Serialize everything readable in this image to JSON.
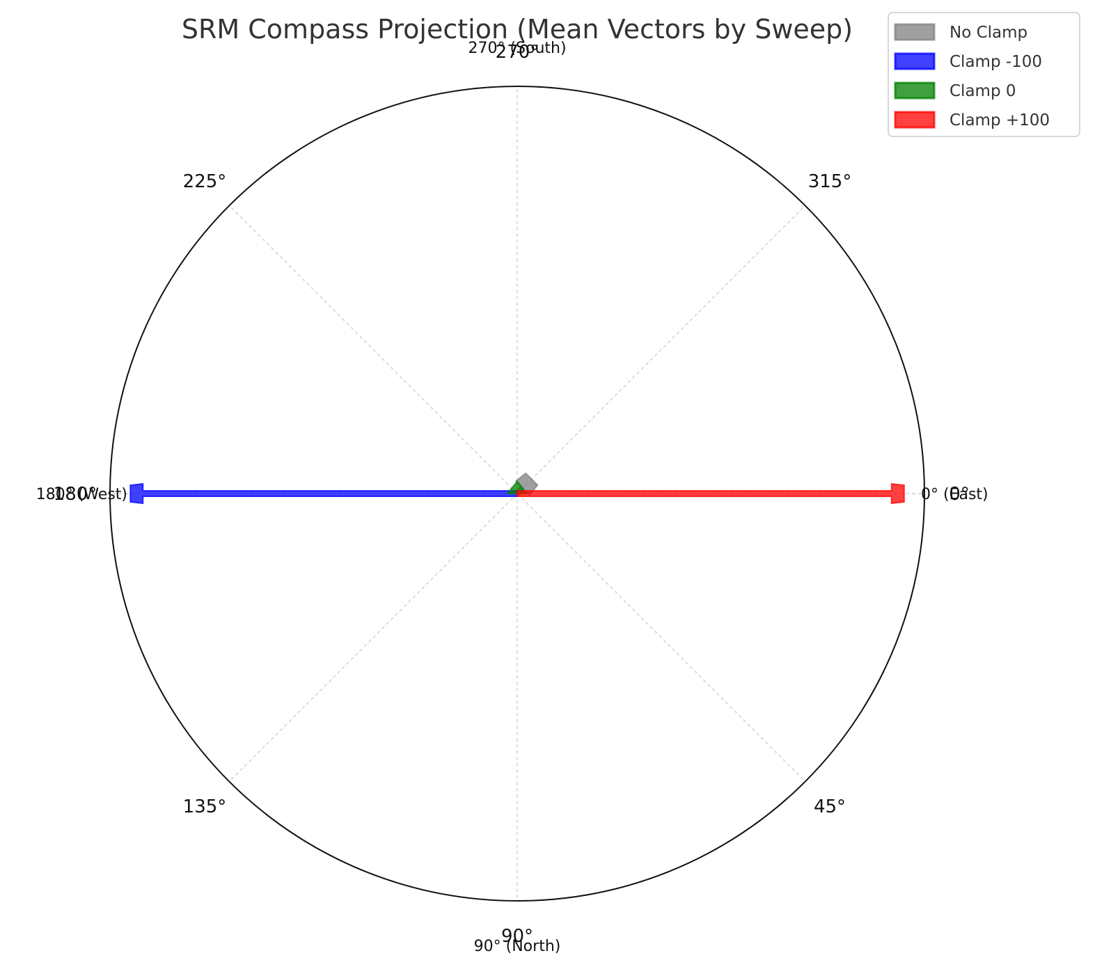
{
  "chart_data": {
    "type": "polar-arrow",
    "title": "SRM Compass Projection (Mean Vectors by Sweep)",
    "angle_direction": "clockwise",
    "zero_location": "E",
    "angle_ticks": [
      {
        "angle": 0,
        "label": "0°"
      },
      {
        "angle": 45,
        "label": "45°"
      },
      {
        "angle": 90,
        "label": "90°"
      },
      {
        "angle": 135,
        "label": "135°"
      },
      {
        "angle": 180,
        "label": "180°"
      },
      {
        "angle": 225,
        "label": "225°"
      },
      {
        "angle": 270,
        "label": "270°"
      },
      {
        "angle": 315,
        "label": "315°"
      }
    ],
    "direction_labels": [
      {
        "angle": 0,
        "label": "0° (East)"
      },
      {
        "angle": 90,
        "label": "90° (North)"
      },
      {
        "angle": 180,
        "label": "180° (West)"
      },
      {
        "angle": 270,
        "label": "270° (South)"
      }
    ],
    "grid": true,
    "radial_range": [
      0,
      1
    ],
    "radial_ticks_visible": false,
    "legend_position": "top-right",
    "series": [
      {
        "name": "No Clamp",
        "color": "#808080",
        "angle_deg": 315,
        "magnitude": 0.05
      },
      {
        "name": "Clamp -100",
        "color": "#0000ff",
        "angle_deg": 180,
        "magnitude": 0.95
      },
      {
        "name": "Clamp 0",
        "color": "#008000",
        "angle_deg": 270,
        "magnitude": 0.03
      },
      {
        "name": "Clamp +100",
        "color": "#ff0000",
        "angle_deg": 0,
        "magnitude": 0.95
      }
    ]
  }
}
